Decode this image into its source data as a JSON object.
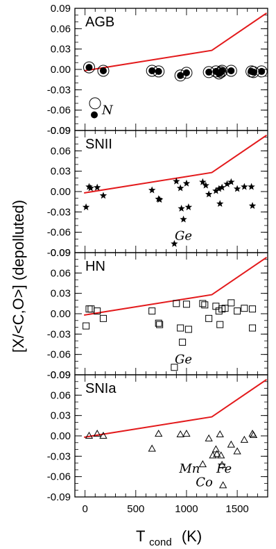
{
  "chart_data": {
    "type": "scatter",
    "ylabel": "[X/<C,O>] (depolluted)",
    "xlabel_main": "T",
    "xlabel_sub": "cond",
    "xlabel_unit": "(K)",
    "xlim": [
      -100,
      1800
    ],
    "ylim": [
      -0.09,
      0.09
    ],
    "x_ticks": [
      0,
      500,
      1000,
      1500
    ],
    "x_tick_labels": [
      "0",
      "500",
      "1000",
      "1500"
    ],
    "y_ticks": [
      0.09,
      0.06,
      0.03,
      0.0,
      -0.03,
      -0.06,
      -0.09
    ],
    "y_tick_labels": [
      "0.09",
      "0.06",
      "0.03",
      "0.00",
      "-0.03",
      "-0.06",
      "-0.09"
    ],
    "line_color": "#e31a1c",
    "line": [
      [
        -10,
        -0.002
      ],
      [
        1250,
        0.028
      ],
      [
        1790,
        0.083
      ]
    ],
    "panels": [
      {
        "label": "AGB",
        "marker": "circle",
        "points": [
          [
            40,
            0.003
          ],
          [
            180,
            -0.002
          ],
          [
            660,
            -0.002
          ],
          [
            725,
            -0.003
          ],
          [
            940,
            -0.009
          ],
          [
            1000,
            -0.005
          ],
          [
            1220,
            -0.004
          ],
          [
            1290,
            -0.003
          ],
          [
            1320,
            -0.006
          ],
          [
            1340,
            -0.004
          ],
          [
            1350,
            -0.002
          ],
          [
            1440,
            -0.002
          ],
          [
            1640,
            -0.003
          ],
          [
            1660,
            -0.004
          ],
          [
            1740,
            -0.003
          ]
        ],
        "annotations": [
          {
            "text": "N",
            "x": 220,
            "y": -0.06
          }
        ]
      },
      {
        "label": "SNII",
        "marker": "star",
        "points": [
          [
            10,
            -0.023
          ],
          [
            40,
            0.007
          ],
          [
            55,
            0.005
          ],
          [
            120,
            0.006
          ],
          [
            180,
            -0.006
          ],
          [
            660,
            0.002
          ],
          [
            725,
            -0.011
          ],
          [
            735,
            -0.012
          ],
          [
            900,
            0.015
          ],
          [
            940,
            0.005
          ],
          [
            950,
            -0.025
          ],
          [
            970,
            -0.041
          ],
          [
            1000,
            0.012
          ],
          [
            1020,
            -0.023
          ],
          [
            1160,
            0.014
          ],
          [
            1190,
            0.009
          ],
          [
            1220,
            -0.004
          ],
          [
            1290,
            0.001
          ],
          [
            1320,
            0.004
          ],
          [
            1330,
            -0.018
          ],
          [
            1350,
            0.006
          ],
          [
            1400,
            0.011
          ],
          [
            1440,
            0.014
          ],
          [
            1500,
            0.004
          ],
          [
            1570,
            0.007
          ],
          [
            1640,
            0.007
          ],
          [
            1650,
            -0.021
          ],
          [
            880,
            -0.077
          ]
        ],
        "annotations": [
          {
            "text": "Ge",
            "x": 970,
            "y": -0.065
          }
        ]
      },
      {
        "label": "HN",
        "marker": "square",
        "points": [
          [
            10,
            -0.018
          ],
          [
            40,
            0.007
          ],
          [
            60,
            0.007
          ],
          [
            120,
            0.004
          ],
          [
            180,
            -0.007
          ],
          [
            660,
            0.004
          ],
          [
            725,
            -0.014
          ],
          [
            735,
            -0.016
          ],
          [
            900,
            0.015
          ],
          [
            940,
            -0.021
          ],
          [
            960,
            -0.042
          ],
          [
            1000,
            0.014
          ],
          [
            1020,
            -0.023
          ],
          [
            1160,
            0.015
          ],
          [
            1180,
            0.013
          ],
          [
            1220,
            -0.007
          ],
          [
            1290,
            0.011
          ],
          [
            1320,
            0.004
          ],
          [
            1330,
            -0.016
          ],
          [
            1350,
            0.007
          ],
          [
            1380,
            0.008
          ],
          [
            1440,
            0.016
          ],
          [
            1500,
            0.004
          ],
          [
            1570,
            0.008
          ],
          [
            1650,
            0.007
          ],
          [
            1650,
            -0.021
          ],
          [
            880,
            -0.079
          ]
        ],
        "annotations": [
          {
            "text": "Ge",
            "x": 970,
            "y": -0.067
          }
        ]
      },
      {
        "label": "SNIa",
        "marker": "triangle",
        "points": [
          [
            40,
            0.0
          ],
          [
            120,
            0.003
          ],
          [
            180,
            0.0
          ],
          [
            660,
            -0.019
          ],
          [
            725,
            0.003
          ],
          [
            940,
            0.002
          ],
          [
            1000,
            0.003
          ],
          [
            1220,
            -0.004
          ],
          [
            1290,
            -0.02
          ],
          [
            1300,
            -0.027
          ],
          [
            1330,
            0.002
          ],
          [
            1340,
            -0.029
          ],
          [
            1350,
            -0.043
          ],
          [
            1360,
            -0.073
          ],
          [
            1440,
            -0.013
          ],
          [
            1500,
            -0.023
          ],
          [
            1570,
            -0.006
          ],
          [
            1650,
            0.003
          ],
          [
            1660,
            0.001
          ],
          [
            1160,
            -0.042
          ],
          [
            1260,
            -0.029
          ]
        ],
        "annotations": [
          {
            "text": "Mn",
            "x": 1030,
            "y": -0.048
          },
          {
            "text": "Fe",
            "x": 1370,
            "y": -0.048
          },
          {
            "text": "Co",
            "x": 1175,
            "y": -0.068
          }
        ]
      }
    ]
  }
}
